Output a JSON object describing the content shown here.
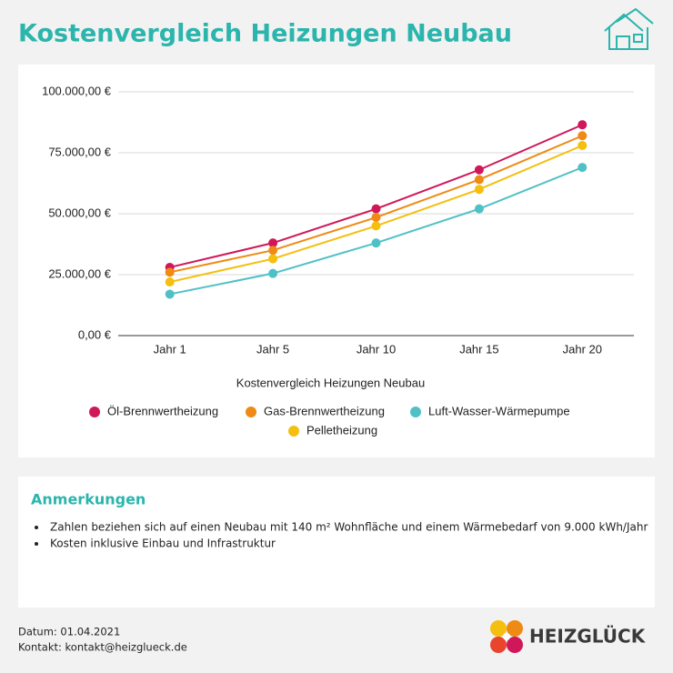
{
  "header": {
    "title": "Kostenvergleich Heizungen Neubau"
  },
  "chart_data": {
    "type": "line",
    "xlabel": "Kostenvergleich Heizungen Neubau",
    "categories": [
      "Jahr 1",
      "Jahr 5",
      "Jahr 10",
      "Jahr 15",
      "Jahr 20"
    ],
    "series": [
      {
        "name": "Öl-Brennwertheizung",
        "color": "#d0175a",
        "values": [
          28000,
          38000,
          52000,
          68000,
          86500
        ]
      },
      {
        "name": "Gas-Brennwertheizung",
        "color": "#ef8a14",
        "values": [
          26000,
          35000,
          48500,
          64000,
          82000
        ]
      },
      {
        "name": "Luft-Wasser-Wärmepumpe",
        "color": "#4fc1c6",
        "values": [
          17000,
          25500,
          38000,
          52000,
          69000
        ]
      },
      {
        "name": "Pelletheizung",
        "color": "#f5bf0f",
        "values": [
          22000,
          31500,
          45000,
          60000,
          78000
        ]
      }
    ],
    "ylim": [
      0,
      100000
    ],
    "yticks": [
      {
        "value": 0,
        "label": "0,00 €"
      },
      {
        "value": 25000,
        "label": "25.000,00 €"
      },
      {
        "value": 50000,
        "label": "50.000,00 €"
      },
      {
        "value": 75000,
        "label": "75.000,00 €"
      },
      {
        "value": 100000,
        "label": "100.000,00 €"
      }
    ],
    "grid": true,
    "legend": "bottom"
  },
  "notes": {
    "title": "Anmerkungen",
    "items": [
      "Zahlen beziehen sich auf einen Neubau mit 140 m² Wohnfläche und einem Wärmebedarf von 9.000 kWh/Jahr",
      "Kosten inklusive Einbau und Infrastruktur"
    ]
  },
  "footer": {
    "date": "Datum: 01.04.2021",
    "contact": "Kontakt: kontakt@heizglueck.de",
    "logo": "HEIZGLÜCK"
  }
}
